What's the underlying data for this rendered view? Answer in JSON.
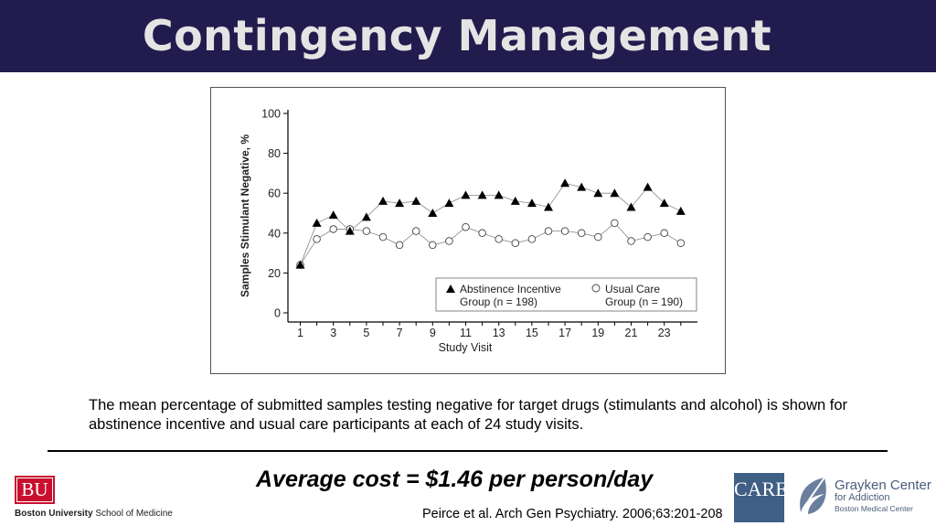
{
  "slide": {
    "title": "Contingency Management",
    "caption": "The mean percentage of submitted samples testing negative for target drugs (stimulants and alcohol) is shown for abstinence incentive and usual care participants at each of 24 study visits.",
    "cost": "Average cost = $1.46 per person/day",
    "citation": "Peirce et al. Arch Gen Psychiatry. 2006;63:201-208"
  },
  "logos": {
    "bu_mark": "BU",
    "bu_name_bold": "Boston University",
    "bu_name_rest": " School of Medicine",
    "care_mark": "CARE",
    "grayken_title": "Grayken Center",
    "grayken_sub": "for Addiction",
    "grayken_sub2": "Boston Medical Center"
  },
  "chart_data": {
    "type": "line",
    "xlabel": "Study Visit",
    "ylabel": "Samples Stimulant Negative, %",
    "xlim": [
      0.5,
      25.5
    ],
    "ylim": [
      0,
      100
    ],
    "x_ticks": [
      1,
      3,
      5,
      7,
      9,
      11,
      13,
      15,
      17,
      19,
      21,
      23
    ],
    "y_ticks": [
      0,
      20,
      40,
      60,
      80,
      100
    ],
    "grid": false,
    "legend_position": "bottom-right",
    "x": [
      1,
      2,
      3,
      4,
      5,
      6,
      7,
      8,
      9,
      10,
      11,
      12,
      13,
      14,
      15,
      16,
      17,
      18,
      19,
      20,
      21,
      22,
      23,
      24
    ],
    "series": [
      {
        "name_line1": "Abstinence Incentive",
        "name_line2": "Group (n = 198)",
        "marker": "filled-triangle",
        "values": [
          24,
          45,
          49,
          41,
          48,
          56,
          55,
          56,
          50,
          55,
          59,
          59,
          59,
          56,
          55,
          53,
          65,
          63,
          60,
          60,
          53,
          63,
          55,
          51
        ]
      },
      {
        "name_line1": "Usual Care",
        "name_line2": "Group (n = 190)",
        "marker": "open-circle",
        "values": [
          24,
          37,
          42,
          42,
          41,
          38,
          34,
          41,
          34,
          36,
          43,
          40,
          37,
          35,
          37,
          41,
          41,
          40,
          38,
          45,
          36,
          38,
          40,
          35
        ]
      }
    ]
  }
}
